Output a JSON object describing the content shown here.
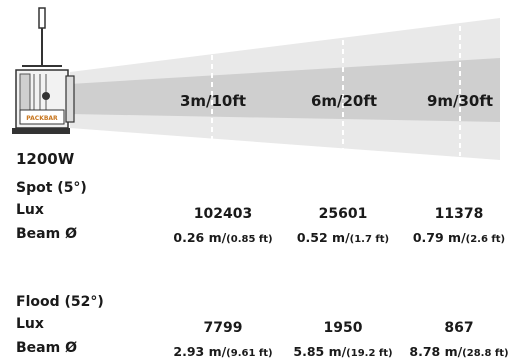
{
  "fixture": {
    "wattage": "1200W",
    "logo_text": "PACKBAR"
  },
  "distances": [
    "3m/10ft",
    "6m/20ft",
    "9m/30ft"
  ],
  "rows": [
    {
      "mode": "Spot (5°)",
      "lux_label": "Lux",
      "beam_label": "Beam Ø",
      "lux": [
        "102403",
        "25601",
        "11378"
      ],
      "beam_m": [
        "0.26 m/",
        "0.52 m/",
        "0.79 m/"
      ],
      "beam_ft": [
        "(0.85 ft)",
        "(1.7 ft)",
        "(2.6 ft)"
      ]
    },
    {
      "mode": "Flood (52°)",
      "lux_label": "Lux",
      "beam_label": "Beam Ø",
      "lux": [
        "7799",
        "1950",
        "867"
      ],
      "beam_m": [
        "2.93 m/",
        "5.85 m/",
        "8.78 m/"
      ],
      "beam_ft": [
        "(9.61 ft)",
        "(19.2 ft)",
        "(28.8 ft)"
      ]
    }
  ]
}
